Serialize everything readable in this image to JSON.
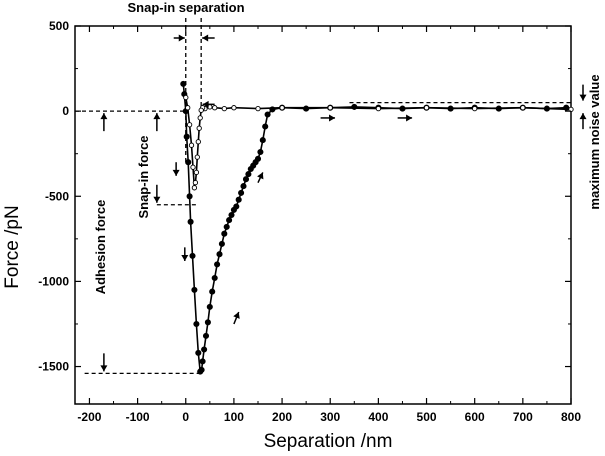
{
  "chart_data": {
    "type": "scatter",
    "title": "",
    "xlabel": "Separation /nm",
    "ylabel": "Force /pN",
    "xlim": [
      -230,
      800
    ],
    "ylim": [
      -1720,
      500
    ],
    "xticks": [
      -200,
      -100,
      0,
      100,
      200,
      300,
      400,
      500,
      600,
      700,
      800
    ],
    "yticks": [
      -1500,
      -1000,
      -500,
      0,
      500
    ],
    "grid": false,
    "legend": "none",
    "series": [
      {
        "style": "filled",
        "color": "#000000",
        "x": [
          -5,
          -3,
          0,
          2,
          5,
          8,
          10,
          14,
          18,
          22,
          26,
          30,
          33,
          35,
          38,
          42,
          46,
          50,
          55,
          60,
          65,
          70,
          75,
          80,
          85,
          90,
          95,
          100,
          105,
          110,
          115,
          120,
          125,
          130,
          135,
          140,
          145,
          150,
          155,
          160,
          165,
          170,
          180,
          200,
          250,
          300,
          350,
          400,
          450,
          500,
          550,
          600,
          650,
          700,
          750,
          790
        ],
        "y": [
          160,
          100,
          0,
          -150,
          -300,
          -500,
          -650,
          -850,
          -1050,
          -1250,
          -1420,
          -1530,
          -1520,
          -1470,
          -1400,
          -1320,
          -1240,
          -1150,
          -1060,
          -980,
          -900,
          -840,
          -780,
          -720,
          -680,
          -640,
          -610,
          -580,
          -560,
          -520,
          -480,
          -440,
          -400,
          -370,
          -340,
          -320,
          -300,
          -280,
          -240,
          -170,
          -90,
          -20,
          10,
          20,
          15,
          20,
          25,
          20,
          15,
          20,
          15,
          20,
          15,
          20,
          15,
          20
        ]
      },
      {
        "style": "open",
        "color": "#000000",
        "x": [
          800,
          700,
          600,
          500,
          400,
          300,
          200,
          150,
          100,
          80,
          60,
          50,
          40,
          35,
          32,
          30,
          28,
          26,
          24,
          22,
          20,
          18,
          15,
          12,
          8,
          4,
          0
        ],
        "y": [
          10,
          20,
          15,
          20,
          15,
          20,
          20,
          15,
          20,
          15,
          20,
          25,
          15,
          20,
          5,
          -40,
          -100,
          -180,
          -270,
          -360,
          -420,
          -450,
          -330,
          -200,
          -80,
          20,
          80
        ]
      }
    ],
    "annotations": {
      "snap_in_separation": "Snap-in separation",
      "snap_in_force": "Snap-in force",
      "adhesion_force": "Adhesion force",
      "maximum_noise_value": "maximum noise value"
    },
    "reference_lines": {
      "zero_level": 0,
      "snap_in_level": -550,
      "adhesion_level": -1540,
      "noise_level": 50,
      "snap_in_x_start": 0,
      "snap_in_x_end": 32
    }
  }
}
